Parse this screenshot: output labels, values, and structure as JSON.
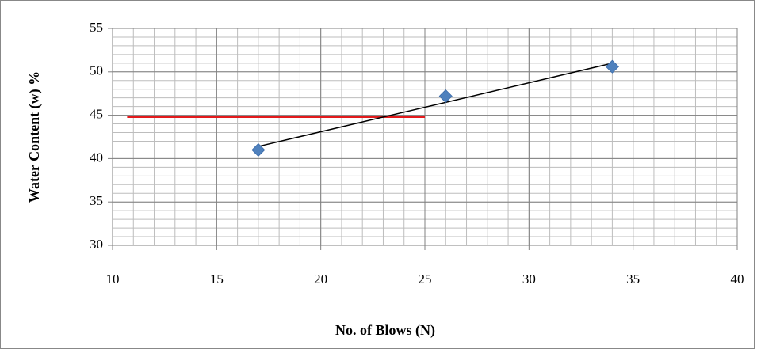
{
  "chart_data": {
    "type": "scatter",
    "x_label": "No. of Blows (N)",
    "y_label": "Water Content (w) %",
    "x": [
      17,
      26,
      34
    ],
    "series": [
      {
        "color": "#4f81bd",
        "values": [
          41,
          47.2,
          50.6
        ]
      }
    ],
    "trendline": {
      "x": [
        17,
        34
      ],
      "values": [
        41.4,
        51
      ],
      "color": "#000000"
    },
    "reference_line": {
      "x": [
        10.7,
        25
      ],
      "values": [
        44.8,
        44.8
      ],
      "color": "#e31a1c"
    },
    "xlim": [
      10,
      40
    ],
    "xticks": [
      10,
      15,
      20,
      25,
      30,
      35,
      40
    ],
    "ylim": [
      30,
      55
    ],
    "yticks": [
      30,
      35,
      40,
      45,
      50,
      55
    ],
    "grid": true,
    "minor_grid_step": 1
  }
}
